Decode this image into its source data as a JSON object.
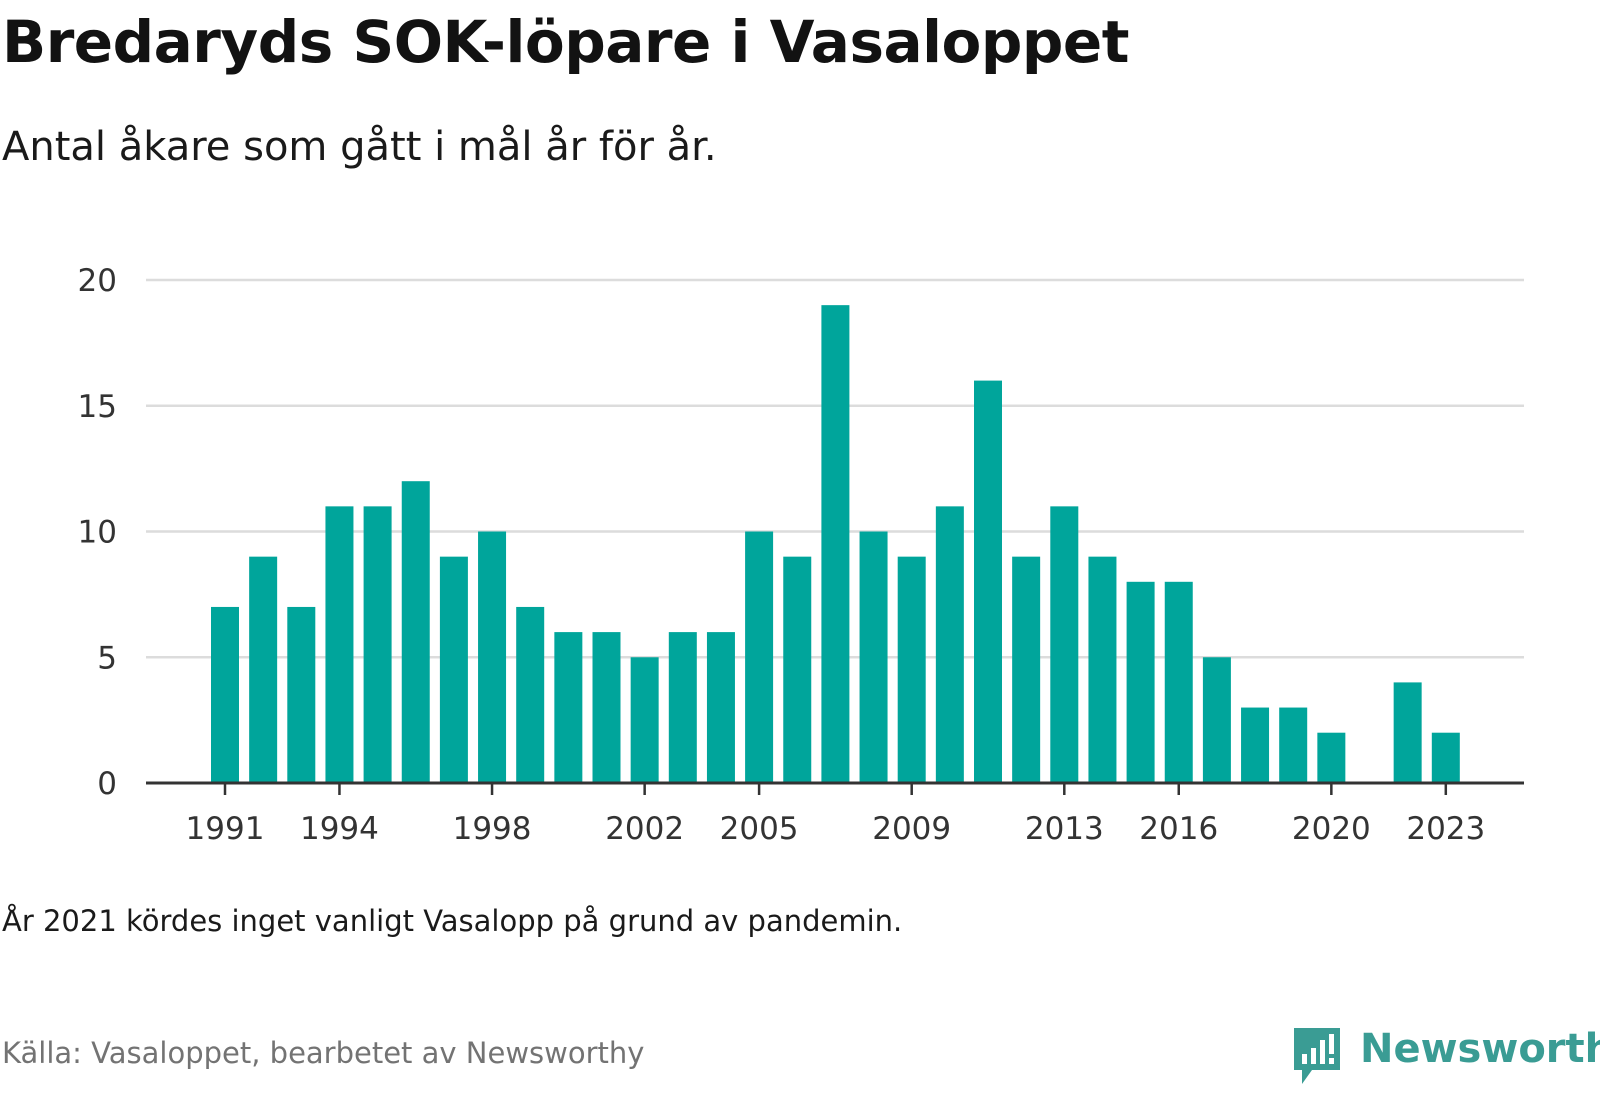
{
  "title": "Bredaryds SOK-löpare i Vasaloppet",
  "subtitle": "Antal åkare som gått i mål år för år.",
  "note": "År 2021 kördes inget vanligt Vasalopp på grund av pandemin.",
  "source": "Källa: Vasaloppet, bearbetet av Newsworthy",
  "logo": {
    "text": "Newsworthy",
    "color": "#3a9c94"
  },
  "chart_data": {
    "type": "bar",
    "bar_color": "#00a59b",
    "categories": [
      1991,
      1992,
      1993,
      1994,
      1995,
      1996,
      1997,
      1998,
      1999,
      2000,
      2001,
      2002,
      2003,
      2004,
      2005,
      2006,
      2007,
      2008,
      2009,
      2010,
      2011,
      2012,
      2013,
      2014,
      2015,
      2016,
      2017,
      2018,
      2019,
      2020,
      2021,
      2022,
      2023
    ],
    "values": [
      7,
      9,
      7,
      11,
      11,
      12,
      9,
      10,
      7,
      6,
      6,
      5,
      6,
      6,
      10,
      9,
      19,
      10,
      9,
      11,
      16,
      9,
      11,
      9,
      8,
      8,
      5,
      3,
      3,
      2,
      null,
      4,
      2
    ],
    "x_tick_labels": [
      "1991",
      "1994",
      "1998",
      "2002",
      "2005",
      "2009",
      "2013",
      "2016",
      "2020",
      "2023"
    ],
    "y_ticks": [
      0,
      5,
      10,
      15,
      20
    ],
    "ylim": [
      0,
      20
    ],
    "grid": true,
    "xlabel": "",
    "ylabel": ""
  }
}
